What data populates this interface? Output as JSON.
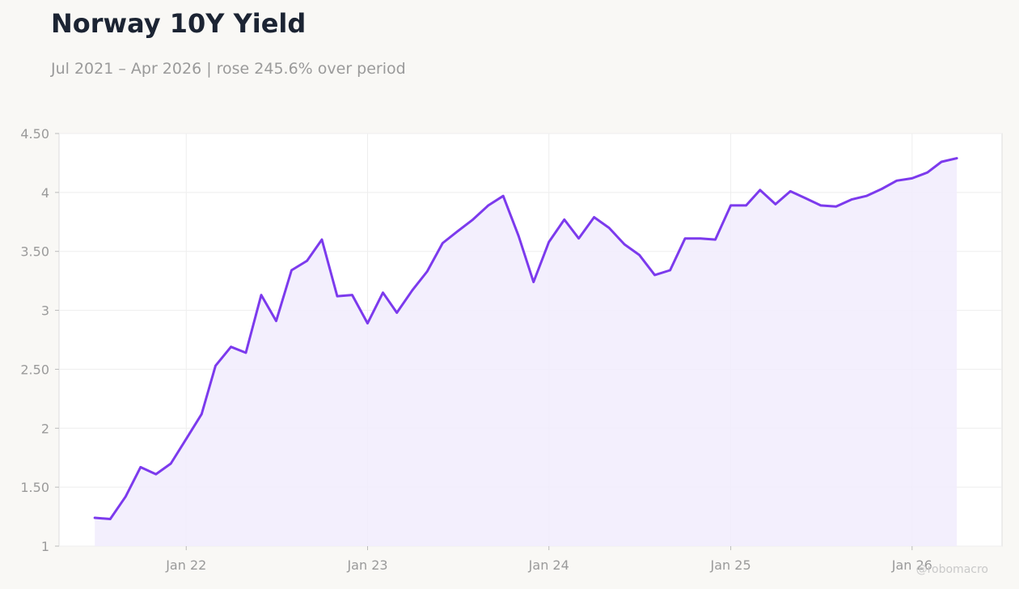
{
  "title": "Norway 10Y Yield",
  "subtitle": "Jul 2021 – Apr 2026 | rose 245.6% over period",
  "watermark": "@robomacro",
  "colors": {
    "line": "#7c3aed",
    "fill": "#f1ecfd",
    "grid": "#eeeeee",
    "axis": "#dddddd",
    "plot_bg": "#ffffff",
    "page_bg": "#f9f8f5"
  },
  "chart_data": {
    "type": "area",
    "title": "Norway 10Y Yield",
    "subtitle": "Jul 2021 – Apr 2026 | rose 245.6% over period",
    "xlabel": "",
    "ylabel": "",
    "grid": true,
    "ylim": [
      1,
      4.5
    ],
    "xlim": [
      "2021-04-20",
      "2026-07-01"
    ],
    "y_ticks": [
      1,
      1.5,
      2,
      2.5,
      3,
      3.5,
      4,
      4.5
    ],
    "y_tick_labels": [
      "1",
      "1.50",
      "2",
      "2.50",
      "3",
      "3.50",
      "4",
      "4.50"
    ],
    "x_ticks": [
      "2022-01-01",
      "2023-01-01",
      "2024-01-01",
      "2025-01-01",
      "2026-01-01"
    ],
    "x_tick_labels": [
      "Jan 22",
      "Jan 23",
      "Jan 24",
      "Jan 25",
      "Jan 26"
    ],
    "series": [
      {
        "x": [
          "2021-07-01",
          "2021-08-01",
          "2021-09-01",
          "2021-10-01",
          "2021-11-01",
          "2021-12-01",
          "2022-01-01",
          "2022-02-01",
          "2022-03-01",
          "2022-04-01",
          "2022-05-01",
          "2022-06-01",
          "2022-07-01",
          "2022-08-01",
          "2022-09-01",
          "2022-10-01",
          "2022-11-01",
          "2022-12-01",
          "2023-01-01",
          "2023-02-01",
          "2023-03-01",
          "2023-04-01",
          "2023-05-01",
          "2023-06-01",
          "2023-07-01",
          "2023-08-01",
          "2023-09-01",
          "2023-10-01",
          "2023-11-01",
          "2023-12-01",
          "2024-01-01",
          "2024-02-01",
          "2024-03-01",
          "2024-04-01",
          "2024-05-01",
          "2024-06-01",
          "2024-07-01",
          "2024-08-01",
          "2024-09-01",
          "2024-10-01",
          "2024-11-01",
          "2024-12-01",
          "2025-01-01",
          "2025-02-01",
          "2025-03-01",
          "2025-04-01",
          "2025-05-01",
          "2025-06-01",
          "2025-07-01",
          "2025-08-01",
          "2025-09-01",
          "2025-10-01",
          "2025-11-01",
          "2025-12-01",
          "2026-01-01",
          "2026-02-01",
          "2026-03-01",
          "2026-04-01"
        ],
        "values": [
          1.24,
          1.23,
          1.42,
          1.67,
          1.61,
          1.7,
          1.91,
          2.12,
          2.53,
          2.69,
          2.64,
          3.13,
          2.91,
          3.34,
          3.42,
          3.6,
          3.12,
          3.13,
          2.89,
          3.15,
          2.98,
          3.17,
          3.33,
          3.57,
          3.67,
          3.77,
          3.89,
          3.97,
          3.63,
          3.24,
          3.58,
          3.77,
          3.61,
          3.79,
          3.7,
          3.56,
          3.47,
          3.3,
          3.34,
          3.61,
          3.61,
          3.6,
          3.89,
          3.89,
          4.02,
          3.9,
          4.01,
          3.95,
          3.89,
          3.88,
          3.94,
          3.97,
          4.03,
          4.1,
          4.12,
          4.17,
          4.26,
          4.29
        ]
      }
    ]
  }
}
